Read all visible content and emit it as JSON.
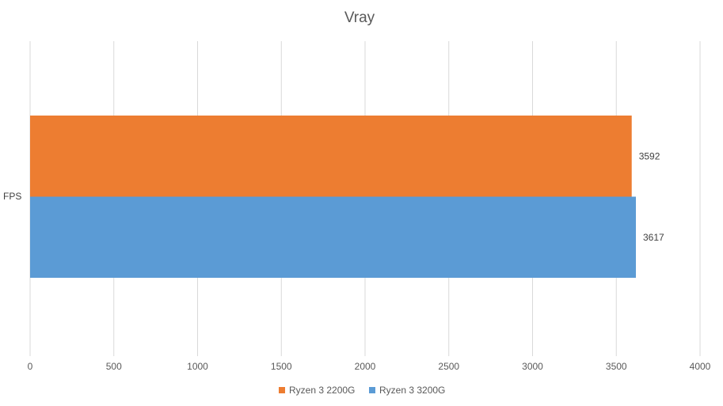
{
  "chart_data": {
    "type": "bar",
    "orientation": "horizontal",
    "title": "Vray",
    "categories": [
      "FPS"
    ],
    "series": [
      {
        "name": "Ryzen 3 2200G",
        "values": [
          3592
        ],
        "color": "#ED7D31"
      },
      {
        "name": "Ryzen 3 3200G",
        "values": [
          3617
        ],
        "color": "#5B9BD5"
      }
    ],
    "xlim": [
      0,
      4000
    ],
    "xticks": [
      0,
      500,
      1000,
      1500,
      2000,
      2500,
      3000,
      3500,
      4000
    ],
    "grid": true,
    "data_labels": true,
    "legend_position": "bottom"
  }
}
